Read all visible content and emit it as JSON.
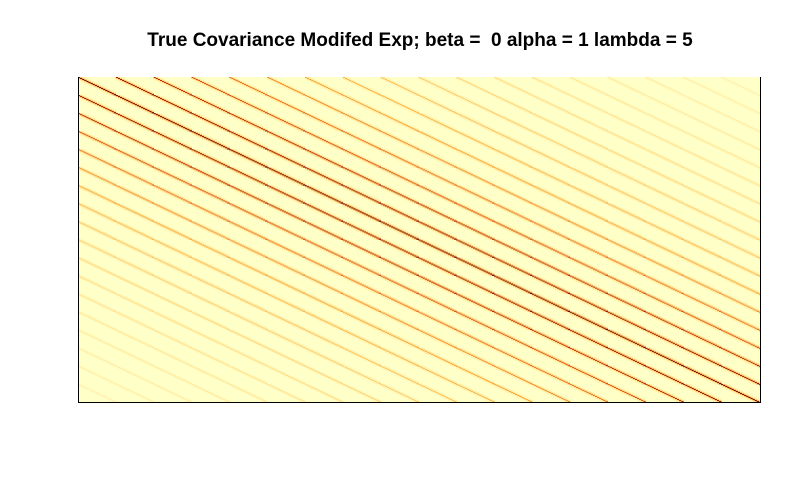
{
  "chart_data": {
    "type": "heatmap",
    "title": "True Covariance Modifed Exp; beta =  0 alpha = 1 lambda = 5",
    "xlabel": "",
    "ylabel": "",
    "matrix": {
      "rows": 325,
      "cols": 325,
      "block_size": 18,
      "block_count": 18
    },
    "parameters": {
      "beta": 0,
      "alpha": 1,
      "lambda": 5
    },
    "value_range": [
      0,
      1
    ],
    "colormap": [
      "#FFFFC8",
      "#FFE08A",
      "#FBAE3C",
      "#E8641B",
      "#B11A00",
      "#7A0403"
    ],
    "background_color": "#FFFFC8",
    "axes": {
      "show_ticks": false,
      "show_labels": false,
      "frame": "left-bottom-right"
    },
    "grid": false,
    "legend": "none"
  }
}
